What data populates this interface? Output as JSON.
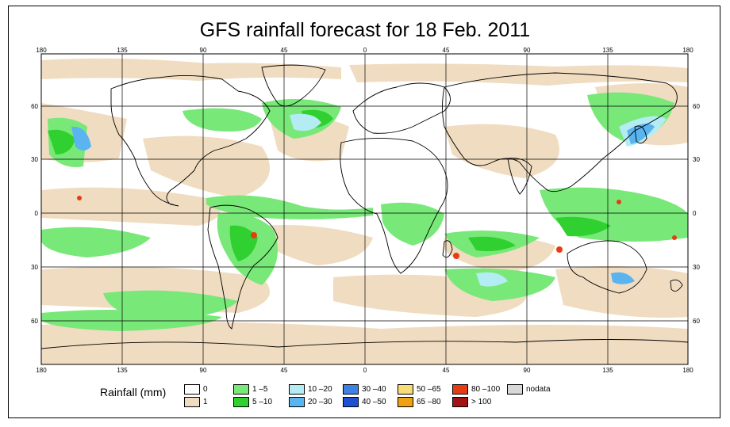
{
  "title": "GFS rainfall forecast for 18 Feb. 2011",
  "axes": {
    "top_labels": [
      "180",
      "135",
      "90",
      "45",
      "0",
      "45",
      "90",
      "135",
      "180"
    ],
    "bottom_labels": [
      "180",
      "135",
      "90",
      "45",
      "0",
      "45",
      "90",
      "135",
      "180"
    ],
    "left_labels": [
      "60",
      "30",
      "0",
      "30",
      "60"
    ],
    "right_labels": [
      "60",
      "30",
      "0",
      "30",
      "60"
    ]
  },
  "colors": {
    "land_outline": "#000000",
    "ocean_bg": "#ffffff",
    "grid": "#000000"
  },
  "legend": {
    "title": "Rainfall (mm)",
    "entries": [
      {
        "label": "0",
        "color": "#ffffff"
      },
      {
        "label": "1",
        "color": "#f0dcc0"
      },
      {
        "label": "1 –5",
        "color": "#78e878"
      },
      {
        "label": "5 –10",
        "color": "#2fd02f"
      },
      {
        "label": "10 –20",
        "color": "#b4ecf4"
      },
      {
        "label": "20 –30",
        "color": "#5ab4f0"
      },
      {
        "label": "30 –40",
        "color": "#3c82e6"
      },
      {
        "label": "40 –50",
        "color": "#1e50d2"
      },
      {
        "label": "50 –65",
        "color": "#f8dc78"
      },
      {
        "label": "65 –80",
        "color": "#f0a014"
      },
      {
        "label": "80 –100",
        "color": "#e63c14"
      },
      {
        "label": "> 100",
        "color": "#a01414"
      },
      {
        "label": "nodata",
        "color": "#d8d8d8"
      }
    ]
  }
}
